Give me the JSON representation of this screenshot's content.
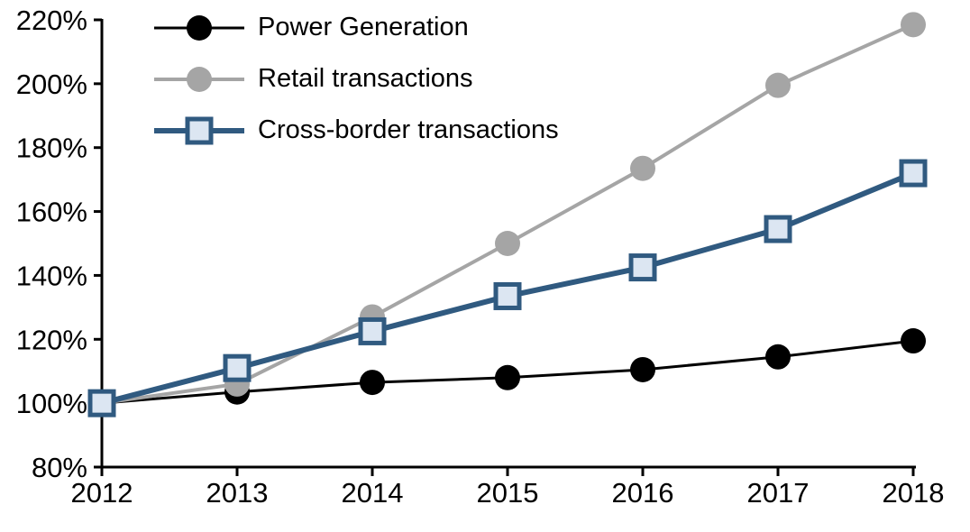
{
  "chart_data": {
    "type": "line",
    "title": "",
    "xlabel": "",
    "ylabel": "",
    "x_labels": [
      "2012",
      "2013",
      "2014",
      "2015",
      "2016",
      "2017",
      "2018"
    ],
    "series": [
      {
        "name": "Power Generation",
        "color": "#000000",
        "marker": "circle",
        "marker_fill": "#000000",
        "line_width": 3,
        "values": [
          100,
          103.5,
          106.5,
          108,
          110.5,
          114.5,
          119.5
        ]
      },
      {
        "name": "Retail transactions",
        "color": "#a5a5a5",
        "marker": "circle",
        "marker_fill": "#a5a5a5",
        "line_width": 4,
        "values": [
          100,
          106,
          127,
          150,
          173.5,
          199.5,
          218.5
        ]
      },
      {
        "name": "Cross-border transactions",
        "color": "#305a80",
        "marker": "square",
        "marker_fill": "#dce6f2",
        "line_width": 6,
        "values": [
          100,
          111,
          122.5,
          133.5,
          142.5,
          154.5,
          172
        ]
      }
    ],
    "ylim": [
      80,
      220
    ],
    "yticks": [
      80,
      100,
      120,
      140,
      160,
      180,
      200,
      220
    ],
    "ytick_labels": [
      "80%",
      "100%",
      "120%",
      "140%",
      "160%",
      "180%",
      "200%",
      "220%"
    ],
    "grid": false,
    "legend_position": "top-left",
    "axis_color": "#000000"
  }
}
